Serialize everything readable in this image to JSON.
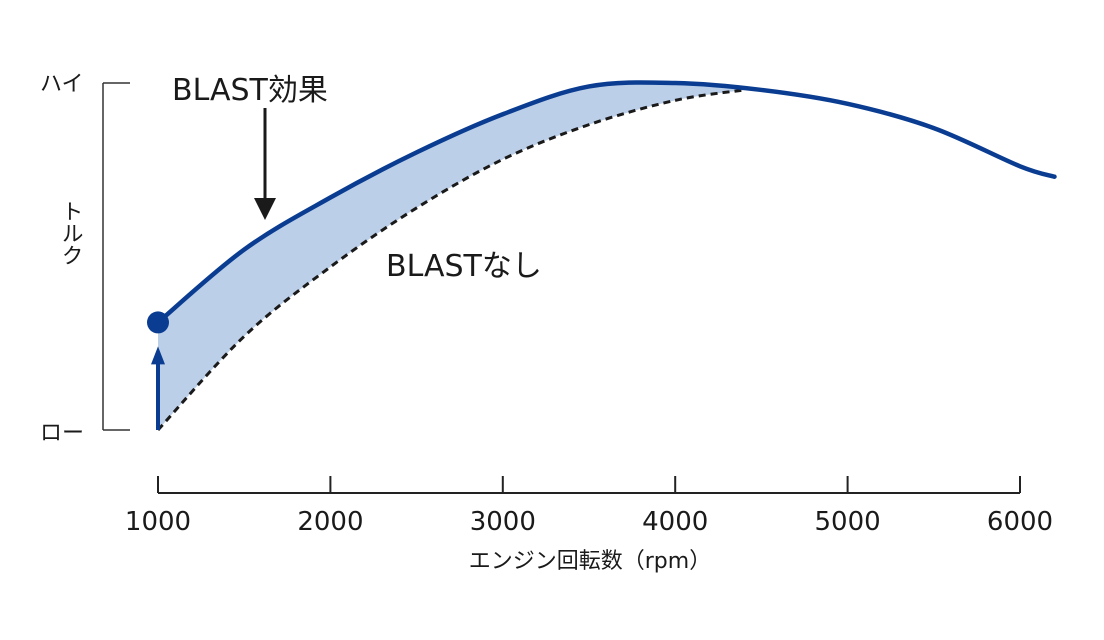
{
  "chart_data": {
    "type": "line",
    "xlabel": "エンジン回転数（rpm）",
    "ylabel": "トルク",
    "y_level_labels": {
      "high": "ハイ",
      "low": "ロー"
    },
    "xlim": [
      1000,
      6000
    ],
    "ylim": [
      0,
      100
    ],
    "x_ticks": [
      1000,
      2000,
      3000,
      4000,
      5000,
      6000
    ],
    "x_tick_labels": [
      "1000",
      "2000",
      "3000",
      "4000",
      "5000",
      "6000"
    ],
    "grid": false,
    "series": [
      {
        "name": "BLAST効果",
        "style": "solid",
        "color": "#0a3d91",
        "x": [
          1000,
          1500,
          2000,
          2500,
          3000,
          3500,
          4000,
          4500,
          5000,
          5500,
          6000,
          6200
        ],
        "y": [
          31,
          52,
          67,
          80,
          91,
          99,
          100,
          98,
          94,
          87,
          76,
          73
        ]
      },
      {
        "name": "BLASTなし",
        "style": "dashed",
        "color": "#1a1a1a",
        "x": [
          1000,
          1500,
          2000,
          2500,
          3000,
          3500,
          4000,
          4400
        ],
        "y": [
          0,
          27,
          47,
          64,
          78,
          88,
          95,
          98
        ]
      }
    ],
    "fill_between": {
      "color": "#bccfe9",
      "x_range": [
        1000,
        4400
      ]
    },
    "start_marker": {
      "x": 1000,
      "y": 31,
      "color": "#0a3d91"
    },
    "annotations": [
      {
        "text": "BLAST効果",
        "arrow": "down",
        "at_x": 1600
      },
      {
        "text": "BLASTなし"
      }
    ]
  }
}
